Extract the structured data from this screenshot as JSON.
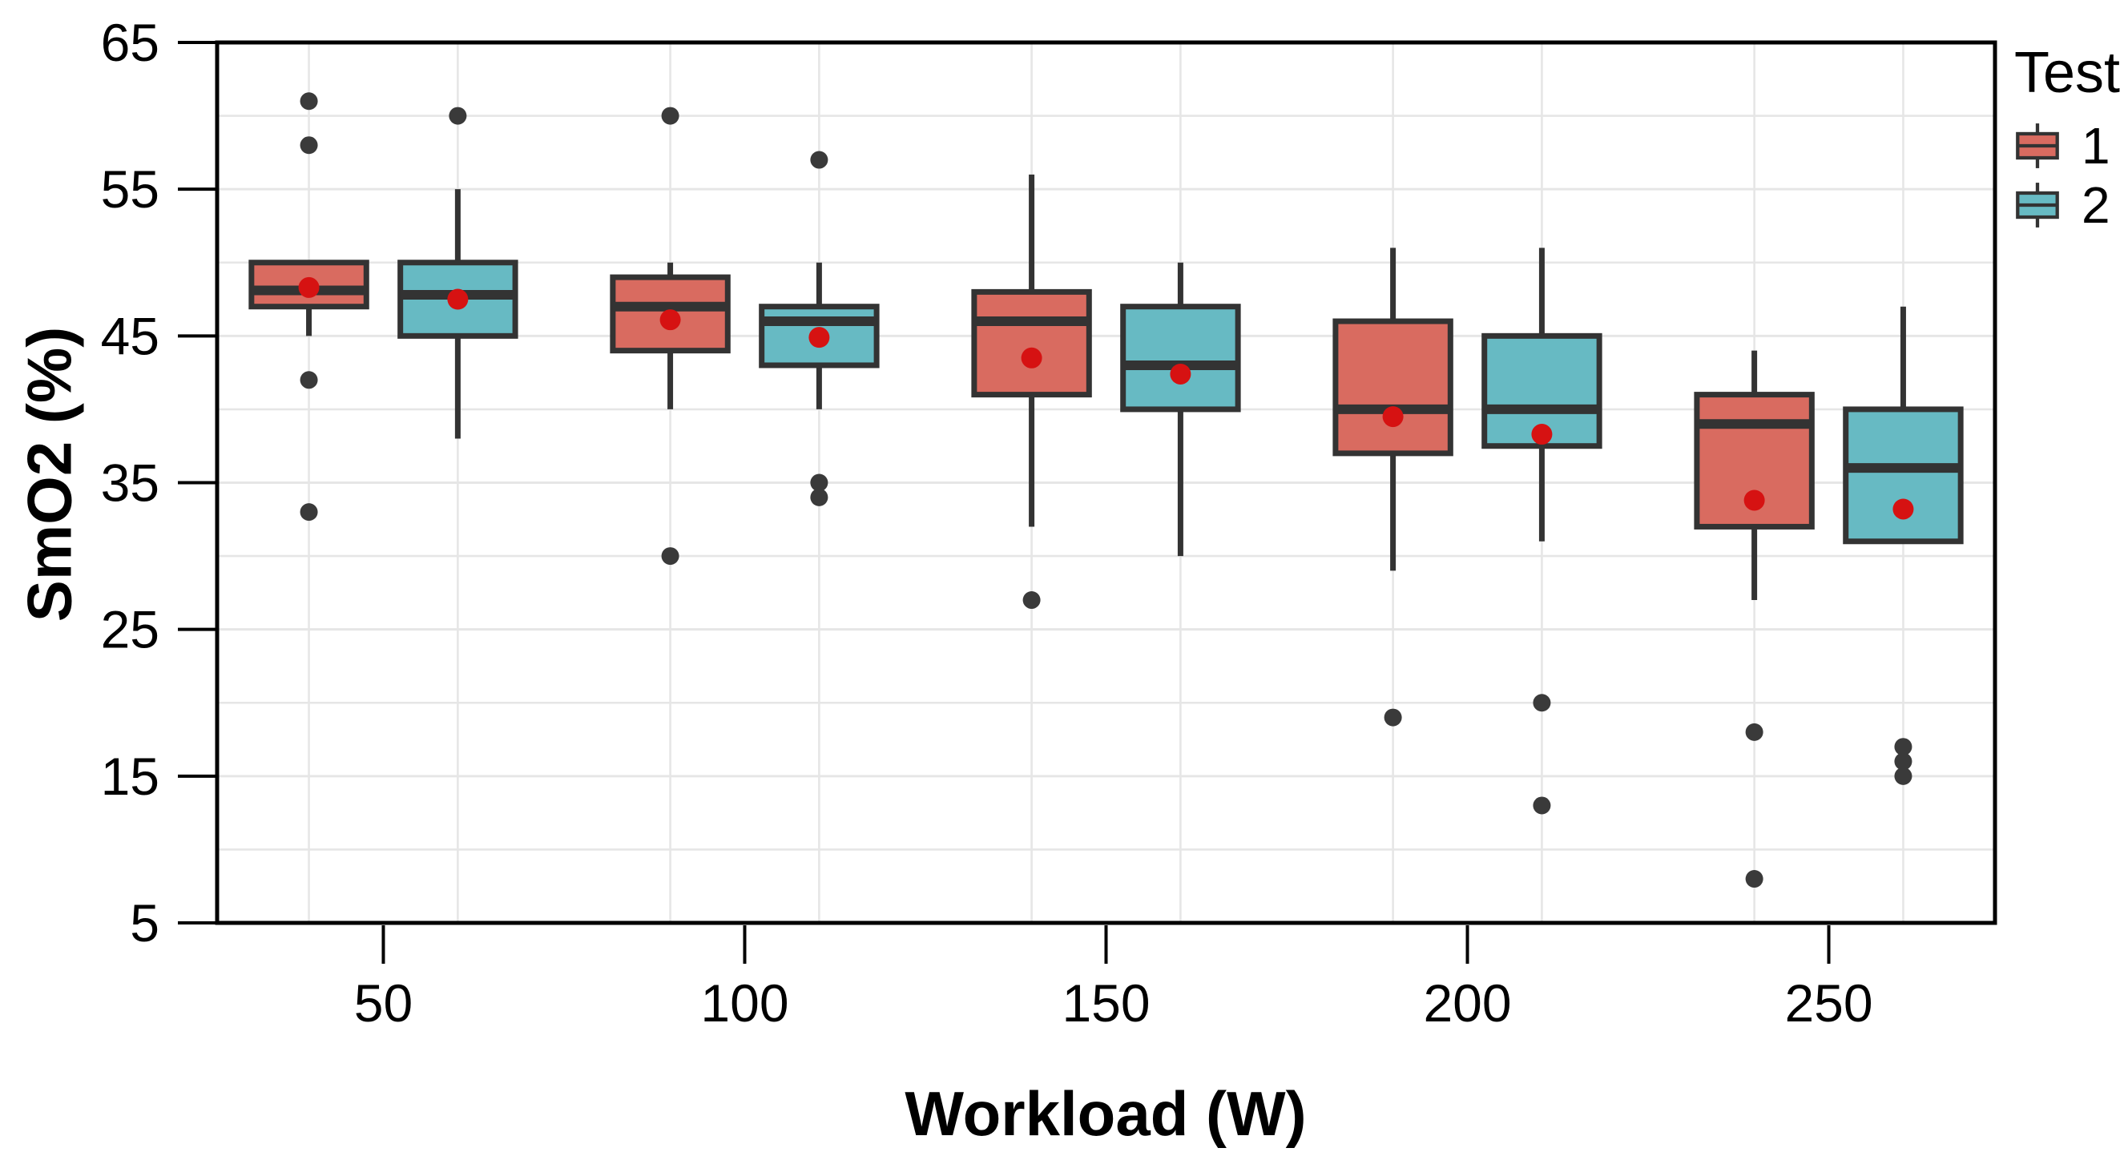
{
  "chart_data": {
    "type": "boxplot",
    "title": "",
    "xlabel": "Workload (W)",
    "ylabel": "SmO2 (%)",
    "x_ticks": [
      50,
      100,
      150,
      200,
      250
    ],
    "y_ticks": [
      5,
      15,
      25,
      35,
      45,
      55,
      65
    ],
    "y_gridlines": [
      10,
      15,
      20,
      25,
      30,
      35,
      40,
      45,
      50,
      55,
      60
    ],
    "xlim": [
      27,
      273
    ],
    "ylim": [
      5,
      65
    ],
    "grid": {
      "color": "#E6E6E6",
      "vertical_at_box_centers": true
    },
    "legend": {
      "title": "Test",
      "position": "top-right",
      "entries": [
        {
          "label": "1",
          "color": "#D96B60"
        },
        {
          "label": "2",
          "color": "#67BAC3"
        }
      ]
    },
    "style": {
      "box_border_color": "#333333",
      "median_color": "#333333",
      "whisker_color": "#333333",
      "outlier_color": "#3A3A3A",
      "mean_dot_color": "#D61212",
      "panel_border_color": "#000000",
      "box_width_w": 15.9,
      "dodge_offset_w": 10.3
    },
    "series": [
      {
        "name": "1",
        "fill": "#D96B60",
        "offset": -10.3,
        "boxes": [
          {
            "x": 50,
            "whisker_low": 45,
            "q1": 47,
            "median": 48.1,
            "q3": 50,
            "whisker_high": 50,
            "mean": 48.3,
            "outliers": [
              61,
              58,
              42,
              33
            ]
          },
          {
            "x": 100,
            "whisker_low": 40,
            "q1": 44,
            "median": 47,
            "q3": 49,
            "whisker_high": 50,
            "mean": 46.1,
            "outliers": [
              60,
              30
            ]
          },
          {
            "x": 150,
            "whisker_low": 32,
            "q1": 41,
            "median": 46,
            "q3": 48,
            "whisker_high": 56,
            "mean": 43.5,
            "outliers": [
              27
            ]
          },
          {
            "x": 200,
            "whisker_low": 29,
            "q1": 37,
            "median": 40,
            "q3": 46,
            "whisker_high": 51,
            "mean": 39.5,
            "outliers": [
              19
            ]
          },
          {
            "x": 250,
            "whisker_low": 27,
            "q1": 32,
            "median": 39,
            "q3": 41,
            "whisker_high": 44,
            "mean": 33.8,
            "outliers": [
              18,
              8
            ]
          }
        ]
      },
      {
        "name": "2",
        "fill": "#67BAC3",
        "offset": 10.3,
        "boxes": [
          {
            "x": 50,
            "whisker_low": 38,
            "q1": 45,
            "median": 47.8,
            "q3": 50,
            "whisker_high": 55,
            "mean": 47.5,
            "outliers": [
              60
            ]
          },
          {
            "x": 100,
            "whisker_low": 40,
            "q1": 43,
            "median": 46,
            "q3": 47,
            "whisker_high": 50,
            "mean": 44.9,
            "outliers": [
              57,
              35,
              34
            ]
          },
          {
            "x": 150,
            "whisker_low": 30,
            "q1": 40,
            "median": 43,
            "q3": 47,
            "whisker_high": 50,
            "mean": 42.4,
            "outliers": []
          },
          {
            "x": 200,
            "whisker_low": 31,
            "q1": 37.5,
            "median": 40,
            "q3": 45,
            "whisker_high": 51,
            "mean": 38.3,
            "outliers": [
              20,
              13
            ]
          },
          {
            "x": 250,
            "whisker_low": 31,
            "q1": 31,
            "median": 36,
            "q3": 40,
            "whisker_high": 47,
            "mean": 33.2,
            "outliers": [
              17,
              16,
              15
            ]
          }
        ]
      }
    ]
  }
}
